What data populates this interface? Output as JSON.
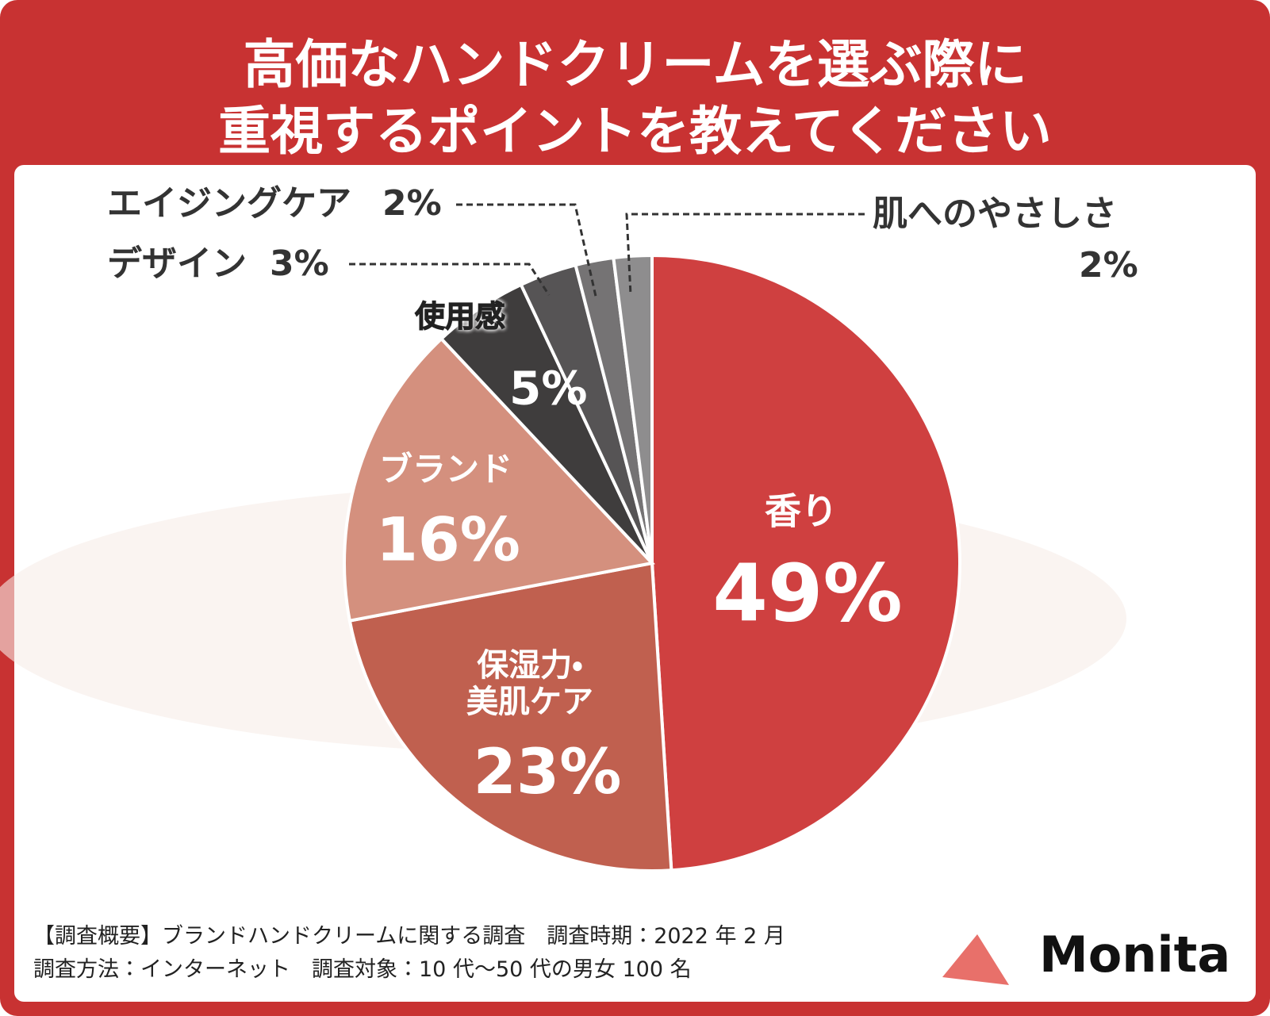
{
  "chart_data": {
    "type": "pie",
    "title": [
      "高価なハンドクリームを選ぶ際に",
      "重視するポイントを教えてください"
    ],
    "categories": [
      "香り",
      "保湿力・美肌ケア",
      "ブランド",
      "使用感",
      "デザイン",
      "エイジングケア",
      "肌へのやさしさ"
    ],
    "values": [
      49,
      23,
      16,
      5,
      3,
      2,
      2
    ],
    "value_labels": [
      "49%",
      "23%",
      "16%",
      "5%",
      "3%",
      "2%",
      "2%"
    ],
    "colors": [
      "#cf4040",
      "#c0604f",
      "#d4907e",
      "#3f3d3d",
      "#565455",
      "#757374",
      "#8e8d8e"
    ]
  },
  "footer": {
    "lines": [
      "【調査概要】ブランドハンドクリームに関する調査　調査時期：2022 年 2 月",
      "調査方法：インターネット　調査対象：10 代〜50 代の男女 100 名"
    ]
  },
  "logo": "Monita"
}
